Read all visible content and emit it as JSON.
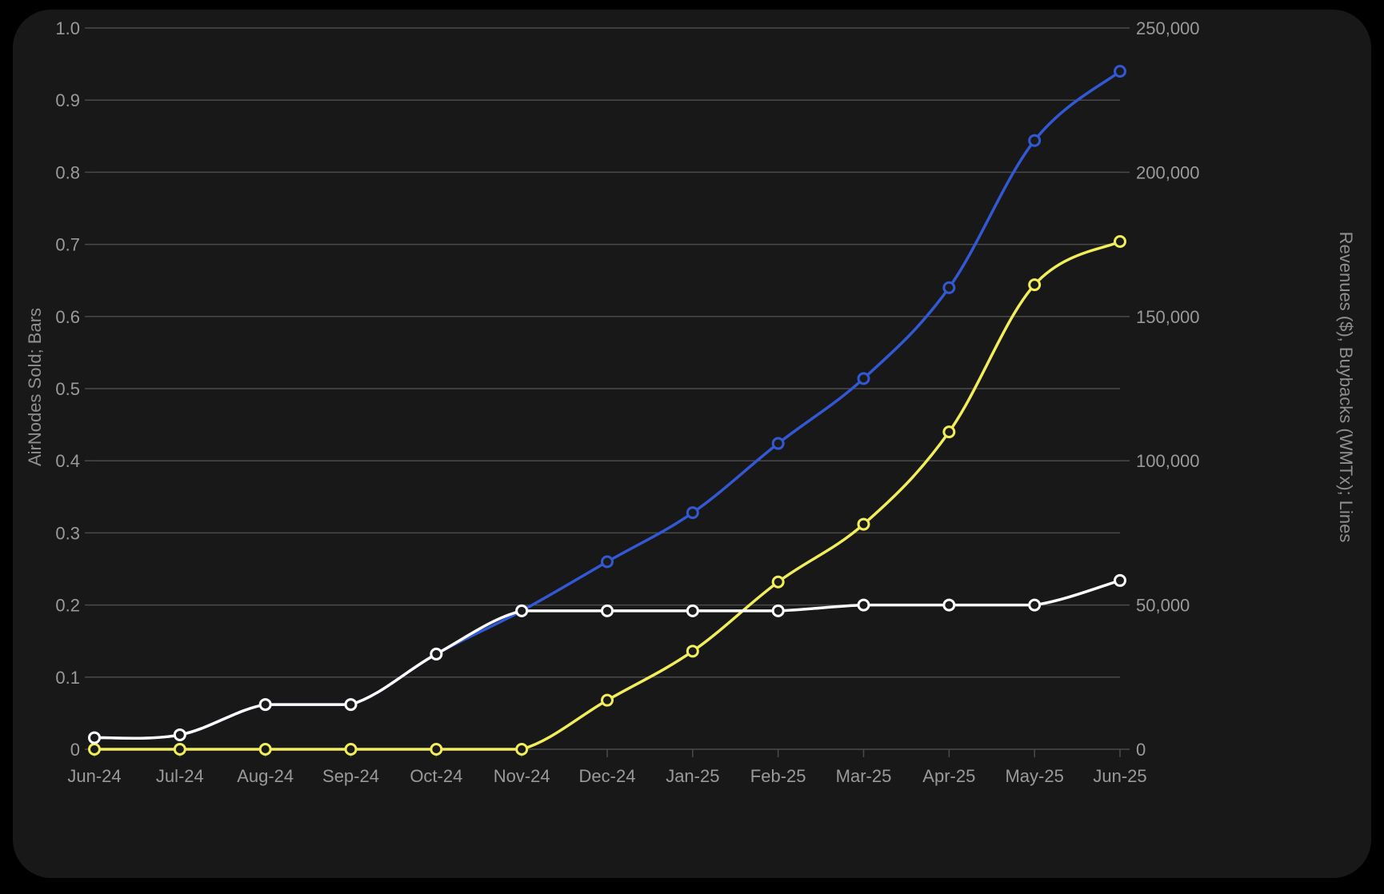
{
  "chart_data": {
    "type": "line",
    "categories": [
      "Jun-24",
      "Jul-24",
      "Aug-24",
      "Sep-24",
      "Oct-24",
      "Nov-24",
      "Dec-24",
      "Jan-25",
      "Feb-25",
      "Mar-25",
      "Apr-25",
      "May-25",
      "Jun-25"
    ],
    "left_axis": {
      "label": "AirNodes Sold; Bars",
      "range": [
        0,
        1.0
      ],
      "ticks": [
        "0",
        "0.1",
        "0.2",
        "0.3",
        "0.4",
        "0.5",
        "0.6",
        "0.7",
        "0.8",
        "0.9",
        "1.0"
      ]
    },
    "right_axis": {
      "label": "Revenues ($), Buybacks (WMTx); Lines",
      "range": [
        0,
        250000
      ],
      "ticks": [
        "0",
        "50,000",
        "100,000",
        "150,000",
        "200,000",
        "250,000"
      ]
    },
    "series": [
      {
        "color": "#3358d4",
        "axis": "right",
        "values": [
          4000,
          5000,
          15500,
          15500,
          33000,
          48000,
          65000,
          82000,
          106000,
          128500,
          160000,
          211000,
          235000
        ]
      },
      {
        "color": "#f2ee5a",
        "axis": "right",
        "values": [
          0,
          0,
          0,
          0,
          0,
          0,
          17000,
          34000,
          58000,
          78000,
          110000,
          161000,
          176000
        ]
      },
      {
        "color": "#ffffff",
        "axis": "right",
        "values": [
          4000,
          5000,
          15500,
          15500,
          33000,
          48000,
          48000,
          48000,
          48000,
          50000,
          50000,
          50000,
          58500
        ]
      }
    ],
    "grid": true,
    "background": "#181818"
  }
}
